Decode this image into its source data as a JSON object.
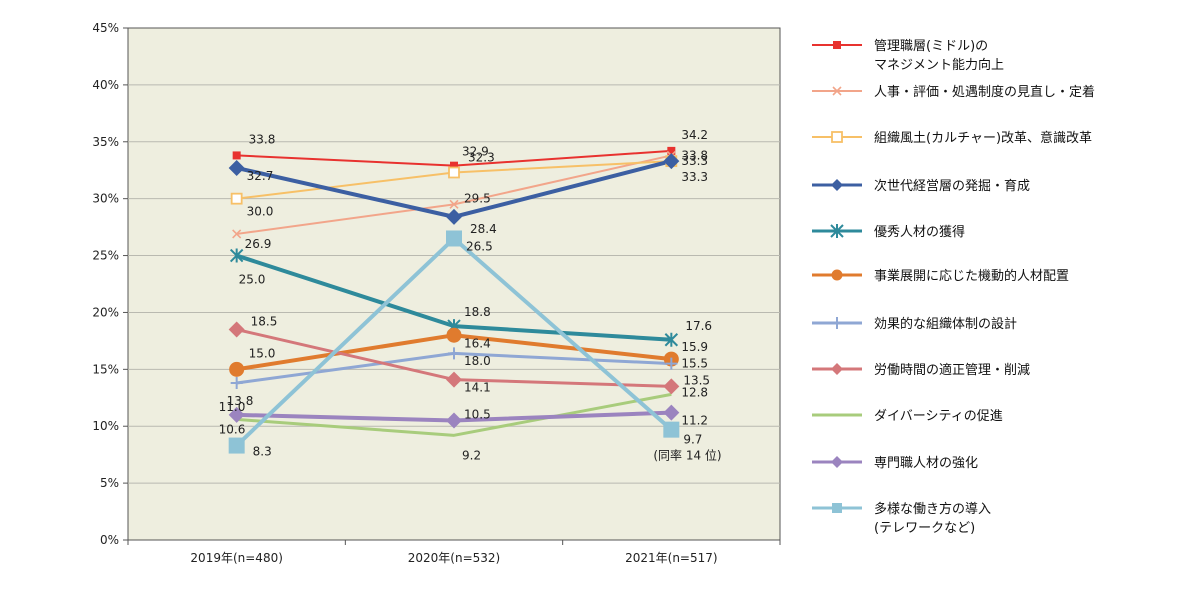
{
  "chart_data": {
    "type": "line",
    "categories": [
      "2019年(n=480)",
      "2020年(n=532)",
      "2021年(n=517)"
    ],
    "y_ticks": [
      "0%",
      "5%",
      "10%",
      "15%",
      "20%",
      "25%",
      "30%",
      "35%",
      "40%",
      "45%"
    ],
    "ylim": [
      0,
      45
    ],
    "grid": "horizontal",
    "legend_position": "right",
    "plot_background": "#eeeedf",
    "series": [
      {
        "name": "管理職層(ミドル)の",
        "name2": "マネジメント能力向上",
        "values": [
          33.8,
          32.9,
          34.2
        ],
        "labels": [
          "33.8",
          "32.9",
          "34.2"
        ],
        "color": "#e8322f",
        "marker": "square-small",
        "width": 2
      },
      {
        "name": "人事・評価・処遇制度の見直し・定着",
        "values": [
          26.9,
          29.5,
          33.8
        ],
        "labels": [
          "26.9",
          "29.5",
          "33.8"
        ],
        "color": "#f2a58a",
        "marker": "x-small",
        "width": 2
      },
      {
        "name": "組織風土(カルチャー)改革、意識改革",
        "values": [
          30.0,
          32.3,
          33.3
        ],
        "labels": [
          "30.0",
          "32.3",
          "33.3"
        ],
        "color": "#f7c067",
        "marker": "square-open",
        "width": 2
      },
      {
        "name": "次世代経営層の発掘・育成",
        "values": [
          32.7,
          28.4,
          33.3
        ],
        "labels": [
          "32.7",
          "28.4",
          "33.3"
        ],
        "color": "#3c5fa2",
        "marker": "diamond",
        "width": 4
      },
      {
        "name": "優秀人材の獲得",
        "values": [
          25.0,
          18.8,
          17.6
        ],
        "labels": [
          "25.0",
          "18.8",
          "17.6"
        ],
        "color": "#2e8a9b",
        "marker": "asterisk",
        "width": 4
      },
      {
        "name": "事業展開に応じた機動的人材配置",
        "values": [
          15.0,
          18.0,
          15.9
        ],
        "labels": [
          "15.0",
          "18.0",
          "15.9"
        ],
        "color": "#e07b2e",
        "marker": "circle",
        "width": 4
      },
      {
        "name": "効果的な組織体制の設計",
        "values": [
          13.8,
          16.4,
          15.5
        ],
        "labels": [
          "13.8",
          "16.4",
          "15.5"
        ],
        "color": "#8fa7d4",
        "marker": "plus",
        "width": 3
      },
      {
        "name": "労働時間の適正管理・削減",
        "values": [
          18.5,
          14.1,
          13.5
        ],
        "labels": [
          "18.5",
          "14.1",
          "13.5"
        ],
        "color": "#d4777a",
        "marker": "diamond",
        "width": 3
      },
      {
        "name": "ダイバーシティの促進",
        "values": [
          10.6,
          9.2,
          12.8
        ],
        "labels": [
          "10.6",
          "9.2",
          "12.8"
        ],
        "color": "#a8cc7c",
        "marker": "none",
        "width": 3
      },
      {
        "name": "専門職人材の強化",
        "values": [
          11.0,
          10.5,
          11.2
        ],
        "labels": [
          "11.0",
          "10.5",
          "11.2"
        ],
        "color": "#9b84bf",
        "marker": "diamond",
        "width": 4
      },
      {
        "name": "多様な働き方の導入",
        "name2": "(テレワークなど)",
        "values": [
          8.3,
          26.5,
          9.7
        ],
        "labels": [
          "8.3",
          "26.5",
          "9.7"
        ],
        "color": "#8ec3d6",
        "marker": "square-big",
        "width": 4
      }
    ],
    "annotation": "(同率 14 位)"
  }
}
